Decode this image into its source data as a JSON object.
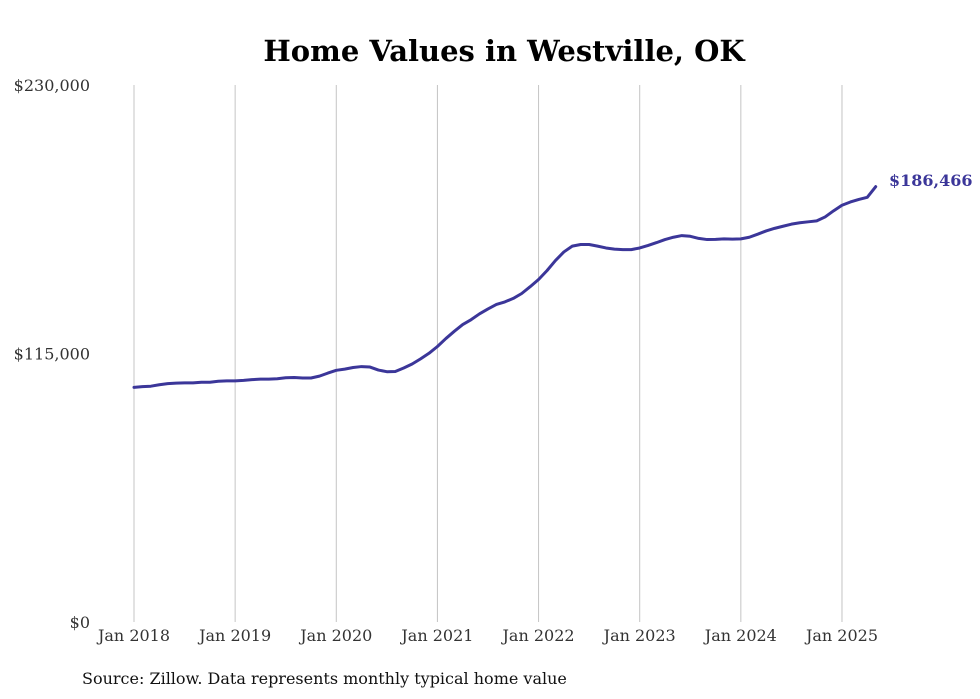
{
  "chart_data": {
    "type": "line",
    "title": "Home Values in Westville, OK",
    "xlabel": "",
    "ylabel": "",
    "ylim": [
      0,
      230000
    ],
    "y_ticks": [
      {
        "value": 0,
        "label": "$0"
      },
      {
        "value": 115000,
        "label": "$115,000"
      },
      {
        "value": 230000,
        "label": "$230,000"
      }
    ],
    "x_ticks": [
      "Jan 2018",
      "Jan 2019",
      "Jan 2020",
      "Jan 2021",
      "Jan 2022",
      "Jan 2023",
      "Jan 2024",
      "Jan 2025"
    ],
    "grid": "vertical",
    "line_color": "#3b3699",
    "series": [
      {
        "values": [
          [
            "2018-01",
            100500
          ],
          [
            "2018-02",
            100800
          ],
          [
            "2018-03",
            101000
          ],
          [
            "2018-04",
            101600
          ],
          [
            "2018-05",
            102100
          ],
          [
            "2018-06",
            102300
          ],
          [
            "2018-07",
            102400
          ],
          [
            "2018-08",
            102400
          ],
          [
            "2018-09",
            102700
          ],
          [
            "2018-10",
            102700
          ],
          [
            "2018-11",
            103100
          ],
          [
            "2018-12",
            103300
          ],
          [
            "2019-01",
            103300
          ],
          [
            "2019-02",
            103500
          ],
          [
            "2019-03",
            103800
          ],
          [
            "2019-04",
            104000
          ],
          [
            "2019-05",
            104000
          ],
          [
            "2019-06",
            104200
          ],
          [
            "2019-07",
            104600
          ],
          [
            "2019-08",
            104700
          ],
          [
            "2019-09",
            104500
          ],
          [
            "2019-10",
            104500
          ],
          [
            "2019-11",
            105300
          ],
          [
            "2019-12",
            106600
          ],
          [
            "2020-01",
            107800
          ],
          [
            "2020-02",
            108300
          ],
          [
            "2020-03",
            109000
          ],
          [
            "2020-04",
            109400
          ],
          [
            "2020-05",
            109200
          ],
          [
            "2020-06",
            107900
          ],
          [
            "2020-07",
            107200
          ],
          [
            "2020-08",
            107300
          ],
          [
            "2020-09",
            108800
          ],
          [
            "2020-10",
            110500
          ],
          [
            "2020-11",
            112700
          ],
          [
            "2020-12",
            115100
          ],
          [
            "2021-01",
            118000
          ],
          [
            "2021-02",
            121400
          ],
          [
            "2021-03",
            124500
          ],
          [
            "2021-04",
            127400
          ],
          [
            "2021-05",
            129500
          ],
          [
            "2021-06",
            132000
          ],
          [
            "2021-07",
            134100
          ],
          [
            "2021-08",
            136000
          ],
          [
            "2021-09",
            137100
          ],
          [
            "2021-10",
            138600
          ],
          [
            "2021-11",
            140700
          ],
          [
            "2021-12",
            143600
          ],
          [
            "2022-01",
            146700
          ],
          [
            "2022-02",
            150500
          ],
          [
            "2022-03",
            154800
          ],
          [
            "2022-04",
            158500
          ],
          [
            "2022-05",
            161000
          ],
          [
            "2022-06",
            161700
          ],
          [
            "2022-07",
            161700
          ],
          [
            "2022-08",
            161000
          ],
          [
            "2022-09",
            160200
          ],
          [
            "2022-10",
            159700
          ],
          [
            "2022-11",
            159500
          ],
          [
            "2022-12",
            159500
          ],
          [
            "2023-01",
            160200
          ],
          [
            "2023-02",
            161300
          ],
          [
            "2023-03",
            162500
          ],
          [
            "2023-04",
            163800
          ],
          [
            "2023-05",
            164800
          ],
          [
            "2023-06",
            165500
          ],
          [
            "2023-07",
            165200
          ],
          [
            "2023-08",
            164300
          ],
          [
            "2023-09",
            163800
          ],
          [
            "2023-10",
            163900
          ],
          [
            "2023-11",
            164100
          ],
          [
            "2023-12",
            164000
          ],
          [
            "2024-01",
            164100
          ],
          [
            "2024-02",
            164800
          ],
          [
            "2024-03",
            166100
          ],
          [
            "2024-04",
            167500
          ],
          [
            "2024-05",
            168600
          ],
          [
            "2024-06",
            169500
          ],
          [
            "2024-07",
            170400
          ],
          [
            "2024-08",
            171000
          ],
          [
            "2024-09",
            171400
          ],
          [
            "2024-10",
            171800
          ],
          [
            "2024-11",
            173500
          ],
          [
            "2024-12",
            176100
          ],
          [
            "2025-01",
            178500
          ],
          [
            "2025-02",
            179900
          ],
          [
            "2025-03",
            181000
          ],
          [
            "2025-04",
            181900
          ],
          [
            "2025-05",
            186466
          ]
        ]
      }
    ],
    "end_label": "$186,466"
  },
  "footer": {
    "source": "Source: Zillow. Data represents monthly typical home value"
  }
}
